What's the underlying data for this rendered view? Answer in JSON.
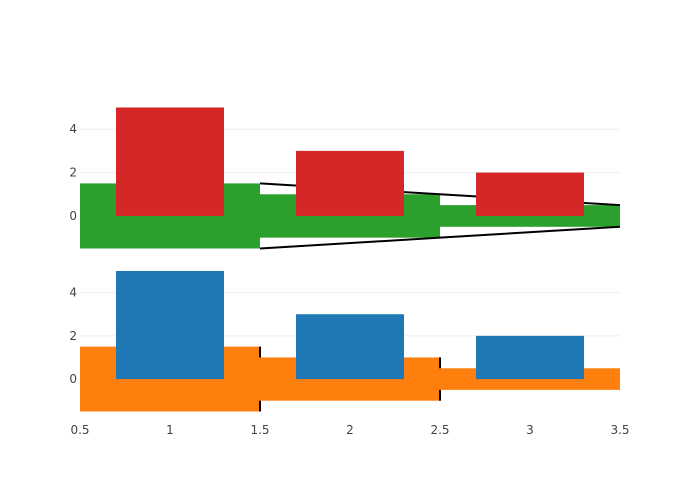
{
  "chart_data": {
    "type": "bar",
    "shared_x": {
      "range": [
        0.5,
        3.5
      ],
      "ticks": [
        0.5,
        1,
        1.5,
        2,
        2.5,
        3,
        3.5
      ],
      "tick_labels": [
        "0.5",
        "1",
        "1.5",
        "2",
        "2.5",
        "3",
        "3.5"
      ]
    },
    "panels": [
      {
        "id": "top",
        "ylim": [
          -1.5,
          5
        ],
        "yticks": [
          0,
          2,
          4
        ],
        "ytick_labels": [
          "0",
          "2",
          "4"
        ],
        "grid": true,
        "series": [
          {
            "type": "step-band",
            "color": "#2ca02c",
            "outline": "linear",
            "segments": [
              {
                "x0": 0.5,
                "x1": 1.5,
                "y0": -1.5,
                "y1": 1.5
              },
              {
                "x0": 1.5,
                "x1": 2.5,
                "y0": -1.0,
                "y1": 1.0
              },
              {
                "x0": 2.5,
                "x1": 3.5,
                "y0": -0.5,
                "y1": 0.5
              }
            ]
          },
          {
            "type": "bar",
            "color": "#d62728",
            "width": 0.6,
            "x": [
              1,
              2,
              3
            ],
            "values": [
              5,
              3,
              2
            ]
          }
        ]
      },
      {
        "id": "bottom",
        "ylim": [
          -1.5,
          5
        ],
        "yticks": [
          0,
          2,
          4
        ],
        "ytick_labels": [
          "0",
          "2",
          "4"
        ],
        "grid": true,
        "series": [
          {
            "type": "step-band",
            "color": "#ff7f0e",
            "outline": "step",
            "segments": [
              {
                "x0": 0.5,
                "x1": 1.5,
                "y0": -1.5,
                "y1": 1.5
              },
              {
                "x0": 1.5,
                "x1": 2.5,
                "y0": -1.0,
                "y1": 1.0
              },
              {
                "x0": 2.5,
                "x1": 3.5,
                "y0": -0.5,
                "y1": 0.5
              }
            ]
          },
          {
            "type": "bar",
            "color": "#1f77b4",
            "width": 0.6,
            "x": [
              1,
              2,
              3
            ],
            "values": [
              5,
              3,
              2
            ]
          }
        ]
      }
    ]
  }
}
